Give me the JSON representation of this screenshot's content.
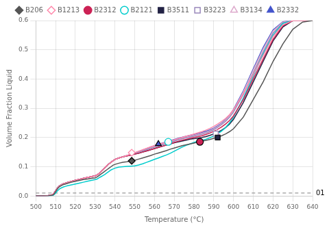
{
  "chart_data": {
    "type": "line",
    "xlabel": "Temperature (°C)",
    "ylabel": "Volume Fraction Liquid",
    "x": [
      500,
      502,
      504,
      506,
      507,
      508,
      509,
      510,
      511,
      512,
      513,
      514,
      515,
      516,
      518,
      520,
      522,
      524,
      526,
      528,
      530,
      531,
      532,
      533,
      534,
      535,
      536,
      537,
      538,
      539,
      540,
      542,
      544,
      546,
      548,
      550,
      552,
      554,
      556,
      558,
      560,
      562,
      564,
      566,
      568,
      570,
      572,
      574,
      576,
      578,
      580,
      582,
      584,
      586,
      588,
      590,
      592,
      594,
      596,
      598,
      600,
      605,
      610,
      615,
      620,
      625,
      630,
      635,
      640
    ],
    "xlim": [
      500,
      640
    ],
    "ylim": [
      0.0,
      0.6
    ],
    "xticks": [
      500,
      510,
      520,
      530,
      540,
      550,
      560,
      570,
      580,
      590,
      600,
      610,
      620,
      630,
      640
    ],
    "yticks": [
      {
        "value": 0.0,
        "label": "0.0"
      },
      0.1,
      0.2,
      0.3,
      0.4,
      0.5,
      0.6
    ],
    "grid": true,
    "legend": "top",
    "annotations": [
      {
        "y": 0.01,
        "text": "01",
        "line_style": "dashed"
      }
    ],
    "series": [
      {
        "name": "B206",
        "color": "#555555",
        "marker": "diamond",
        "marker_point": [
          548.5,
          0.12
        ],
        "values": [
          0.0,
          0.0,
          0.0,
          0.0,
          0.001,
          0.002,
          0.005,
          0.015,
          0.025,
          0.032,
          0.036,
          0.039,
          0.041,
          0.043,
          0.047,
          0.05,
          0.053,
          0.056,
          0.058,
          0.06,
          0.062,
          0.065,
          0.07,
          0.075,
          0.08,
          0.085,
          0.09,
          0.095,
          0.1,
          0.105,
          0.108,
          0.112,
          0.115,
          0.117,
          0.12,
          0.122,
          0.126,
          0.13,
          0.134,
          0.138,
          0.143,
          0.147,
          0.151,
          0.155,
          0.16,
          0.164,
          0.168,
          0.172,
          0.175,
          0.178,
          0.181,
          0.184,
          0.187,
          0.19,
          0.193,
          0.197,
          0.201,
          0.206,
          0.212,
          0.22,
          0.23,
          0.27,
          0.33,
          0.39,
          0.46,
          0.52,
          0.57,
          0.595,
          0.6
        ]
      },
      {
        "name": "B1213",
        "color": "#ff88aa",
        "marker": "open_diamond",
        "marker_point": [
          548.5,
          0.148
        ],
        "values": [
          0.0,
          0.0,
          0.0,
          0.001,
          0.002,
          0.003,
          0.008,
          0.018,
          0.028,
          0.035,
          0.039,
          0.042,
          0.044,
          0.046,
          0.05,
          0.054,
          0.057,
          0.06,
          0.063,
          0.066,
          0.069,
          0.072,
          0.077,
          0.083,
          0.09,
          0.097,
          0.104,
          0.11,
          0.115,
          0.12,
          0.125,
          0.13,
          0.134,
          0.138,
          0.143,
          0.148,
          0.153,
          0.158,
          0.163,
          0.168,
          0.172,
          0.176,
          0.18,
          0.184,
          0.188,
          0.192,
          0.196,
          0.2,
          0.204,
          0.208,
          0.212,
          0.216,
          0.22,
          0.225,
          0.231,
          0.238,
          0.246,
          0.255,
          0.265,
          0.278,
          0.295,
          0.35,
          0.415,
          0.48,
          0.545,
          0.585,
          0.6,
          0.6,
          0.6
        ]
      },
      {
        "name": "B2312",
        "color": "#cc2255",
        "marker": "circle",
        "marker_point": [
          583.0,
          0.185
        ],
        "values": [
          0.0,
          0.0,
          0.0,
          0.001,
          0.002,
          0.003,
          0.008,
          0.018,
          0.028,
          0.035,
          0.039,
          0.042,
          0.044,
          0.046,
          0.05,
          0.054,
          0.057,
          0.06,
          0.063,
          0.066,
          0.069,
          0.072,
          0.077,
          0.083,
          0.09,
          0.097,
          0.104,
          0.11,
          0.115,
          0.12,
          0.125,
          0.13,
          0.134,
          0.137,
          0.14,
          0.143,
          0.146,
          0.15,
          0.154,
          0.158,
          0.162,
          0.166,
          0.17,
          0.174,
          0.178,
          0.183,
          0.187,
          0.191,
          0.194,
          0.197,
          0.2,
          0.203,
          0.206,
          0.21,
          0.215,
          0.221,
          0.228,
          0.236,
          0.246,
          0.258,
          0.274,
          0.33,
          0.4,
          0.468,
          0.535,
          0.582,
          0.6,
          0.6,
          0.6
        ]
      },
      {
        "name": "B2121",
        "color": "#00cccc",
        "marker": "open_circle",
        "marker_point": [
          567.0,
          0.185
        ],
        "values": [
          0.0,
          0.0,
          0.0,
          0.0,
          0.0,
          0.001,
          0.003,
          0.01,
          0.018,
          0.024,
          0.028,
          0.031,
          0.033,
          0.035,
          0.038,
          0.041,
          0.044,
          0.047,
          0.05,
          0.053,
          0.056,
          0.058,
          0.062,
          0.066,
          0.07,
          0.074,
          0.079,
          0.084,
          0.089,
          0.092,
          0.095,
          0.099,
          0.1,
          0.101,
          0.102,
          0.103,
          0.106,
          0.11,
          0.115,
          0.12,
          0.125,
          0.13,
          0.135,
          0.14,
          0.146,
          0.153,
          0.16,
          0.167,
          0.173,
          0.178,
          0.183,
          0.187,
          0.19,
          0.194,
          0.199,
          0.205,
          0.213,
          0.222,
          0.234,
          0.25,
          0.27,
          0.335,
          0.41,
          0.485,
          0.55,
          0.59,
          0.6,
          0.6,
          0.6
        ]
      },
      {
        "name": "B3511",
        "color": "#222244",
        "marker": "square",
        "marker_point": [
          592.0,
          0.2
        ],
        "values": [
          0.0,
          0.0,
          0.0,
          0.001,
          0.002,
          0.003,
          0.008,
          0.018,
          0.028,
          0.035,
          0.039,
          0.042,
          0.044,
          0.046,
          0.05,
          0.054,
          0.057,
          0.06,
          0.063,
          0.066,
          0.069,
          0.072,
          0.077,
          0.083,
          0.09,
          0.097,
          0.104,
          0.11,
          0.115,
          0.12,
          0.125,
          0.13,
          0.134,
          0.137,
          0.14,
          0.143,
          0.146,
          0.15,
          0.154,
          0.158,
          0.162,
          0.166,
          0.17,
          0.174,
          0.178,
          0.182,
          0.185,
          0.188,
          0.191,
          0.194,
          0.196,
          0.198,
          0.2,
          0.203,
          0.207,
          0.212,
          0.218,
          0.225,
          0.234,
          0.246,
          0.262,
          0.32,
          0.39,
          0.46,
          0.53,
          0.578,
          0.6,
          0.6,
          0.6
        ]
      },
      {
        "name": "B3223",
        "color": "#9988bb",
        "marker": "open_square",
        "marker_point": [
          591.0,
          0.213
        ],
        "values": [
          0.0,
          0.0,
          0.0,
          0.001,
          0.002,
          0.003,
          0.008,
          0.018,
          0.028,
          0.035,
          0.039,
          0.042,
          0.044,
          0.046,
          0.05,
          0.054,
          0.057,
          0.06,
          0.063,
          0.066,
          0.069,
          0.072,
          0.077,
          0.083,
          0.09,
          0.097,
          0.104,
          0.11,
          0.115,
          0.12,
          0.125,
          0.13,
          0.134,
          0.138,
          0.142,
          0.146,
          0.15,
          0.154,
          0.158,
          0.163,
          0.167,
          0.171,
          0.175,
          0.179,
          0.183,
          0.188,
          0.192,
          0.196,
          0.199,
          0.202,
          0.205,
          0.208,
          0.211,
          0.215,
          0.22,
          0.227,
          0.235,
          0.244,
          0.255,
          0.269,
          0.287,
          0.347,
          0.42,
          0.492,
          0.557,
          0.592,
          0.6,
          0.6,
          0.6
        ]
      },
      {
        "name": "B3134",
        "color": "#ddaacc",
        "marker": "open_triangle",
        "marker_point": [
          591.5,
          0.215
        ],
        "values": [
          0.0,
          0.0,
          0.0,
          0.001,
          0.002,
          0.003,
          0.008,
          0.018,
          0.028,
          0.035,
          0.039,
          0.042,
          0.044,
          0.046,
          0.05,
          0.054,
          0.057,
          0.06,
          0.063,
          0.066,
          0.069,
          0.072,
          0.077,
          0.083,
          0.09,
          0.097,
          0.104,
          0.11,
          0.115,
          0.12,
          0.125,
          0.13,
          0.134,
          0.138,
          0.142,
          0.147,
          0.151,
          0.155,
          0.16,
          0.164,
          0.169,
          0.173,
          0.177,
          0.181,
          0.185,
          0.19,
          0.194,
          0.198,
          0.201,
          0.204,
          0.207,
          0.211,
          0.214,
          0.218,
          0.223,
          0.23,
          0.238,
          0.247,
          0.259,
          0.274,
          0.293,
          0.356,
          0.43,
          0.502,
          0.564,
          0.595,
          0.6,
          0.6,
          0.6
        ]
      },
      {
        "name": "B2332",
        "color": "#4455cc",
        "marker": "triangle",
        "marker_point": [
          562.0,
          0.178
        ],
        "values": [
          0.0,
          0.0,
          0.0,
          0.001,
          0.002,
          0.003,
          0.008,
          0.018,
          0.028,
          0.035,
          0.039,
          0.042,
          0.044,
          0.046,
          0.05,
          0.054,
          0.057,
          0.06,
          0.063,
          0.066,
          0.069,
          0.072,
          0.077,
          0.083,
          0.09,
          0.097,
          0.104,
          0.11,
          0.115,
          0.12,
          0.125,
          0.13,
          0.134,
          0.138,
          0.142,
          0.147,
          0.152,
          0.157,
          0.162,
          0.167,
          0.172,
          0.177,
          0.181,
          0.185,
          0.189,
          0.193,
          0.197,
          0.201,
          0.204,
          0.207,
          0.21,
          0.213,
          0.217,
          0.221,
          0.226,
          0.232,
          0.24,
          0.249,
          0.261,
          0.276,
          0.296,
          0.36,
          0.435,
          0.508,
          0.568,
          0.596,
          0.6,
          0.6,
          0.6
        ]
      }
    ]
  }
}
